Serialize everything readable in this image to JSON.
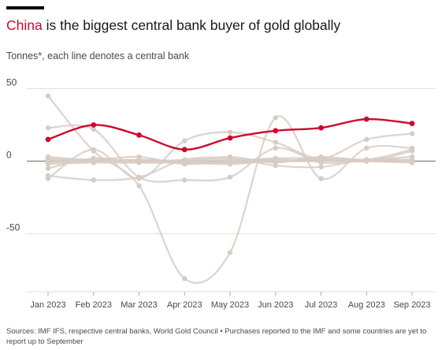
{
  "header": {
    "title_highlight": "China",
    "title_rest": " is the biggest central bank buyer of gold globally",
    "subtitle": "Tonnes*, each line denotes a central bank"
  },
  "footer": {
    "source": "Sources: IMF IFS, respective central banks, World Gold Council • Purchases reported to the IMF and some countries are yet to report up to September"
  },
  "colors": {
    "highlight": "#cc0a2c",
    "other_banks": "#d7ccc4",
    "grid": "#e2ddd9",
    "zero_line": "#8e8780"
  },
  "chart_data": {
    "type": "line",
    "x": [
      "Jan 2023",
      "Feb 2023",
      "Mar 2023",
      "Apr 2023",
      "May 2023",
      "Jun 2023",
      "Jul 2023",
      "Aug 2023",
      "Sep 2023"
    ],
    "ylim": [
      -90,
      50
    ],
    "yticks": [
      50,
      0,
      -50
    ],
    "grid": true,
    "highlight_series": {
      "name": "China",
      "values": [
        15,
        25,
        18,
        8,
        16,
        21,
        23,
        29,
        26
      ]
    },
    "other_series": [
      [
        45,
        7,
        -17,
        -81,
        -63,
        30,
        -12,
        9,
        9
      ],
      [
        23,
        22,
        -11,
        -13,
        -11,
        9,
        -1,
        1,
        3
      ],
      [
        -12,
        8,
        -12,
        14,
        20,
        13,
        2,
        15,
        19
      ],
      [
        -10,
        -13,
        -11,
        1,
        2,
        -3,
        -4,
        1,
        0
      ],
      [
        3,
        1,
        3,
        -2,
        0,
        2,
        2,
        1,
        1
      ],
      [
        1,
        0,
        0,
        -1,
        -1,
        0,
        1,
        0,
        7
      ],
      [
        0,
        1,
        0,
        0,
        0,
        0,
        0,
        0,
        -1
      ],
      [
        -2,
        -1,
        -1,
        1,
        1,
        1,
        0,
        1,
        1
      ],
      [
        -5,
        2,
        -1,
        -1,
        -2,
        0,
        1,
        0,
        0
      ],
      [
        2,
        0,
        1,
        0,
        3,
        -1,
        3,
        1,
        8
      ],
      [
        -1,
        0,
        1,
        0,
        -1,
        1,
        0,
        1,
        1
      ]
    ]
  }
}
